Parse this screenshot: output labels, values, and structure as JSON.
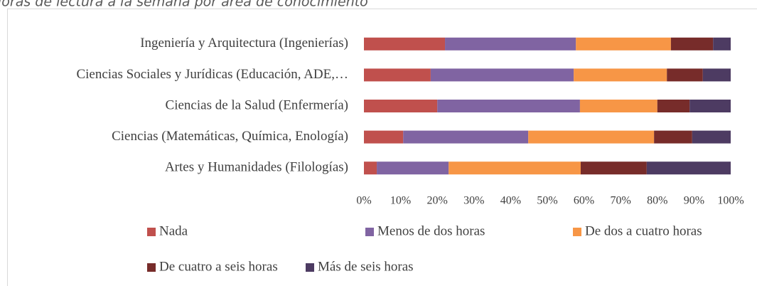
{
  "chart_data": {
    "type": "stacked_bar_horizontal",
    "title": "Horas de lectura a la semana por área de conocimiento",
    "categories": [
      "Ingeniería y Arquitectura (Ingenierías)",
      "Ciencias Sociales y Jurídicas (Educación, ADE,…",
      "Ciencias de la Salud (Enfermería)",
      "Ciencias (Matemáticas, Química, Enología)",
      "Artes y Humanidades (Filologías)"
    ],
    "series": [
      {
        "name": "Nada",
        "color": "#c0504d",
        "values": [
          22.1,
          18.2,
          20,
          10.7,
          3.5
        ]
      },
      {
        "name": "Menos de dos horas",
        "color": "#8064a2",
        "values": [
          35.7,
          39,
          38.9,
          34.1,
          19.6
        ]
      },
      {
        "name": "De dos a cuatro horas",
        "color": "#f79646",
        "values": [
          25.9,
          25.4,
          21.1,
          34.3,
          36
        ]
      },
      {
        "name": "De cuatro a seis horas",
        "color": "#772c2a",
        "values": [
          11.5,
          9.8,
          8.8,
          10.4,
          18
        ]
      },
      {
        "name": "Más de seis horas",
        "color": "#4d3b62",
        "values": [
          4.8,
          7.6,
          11.2,
          10.5,
          22.9
        ]
      }
    ],
    "xlim": [
      0,
      100
    ],
    "xticks": [
      {
        "value": 0,
        "label": "0%"
      },
      {
        "value": 10,
        "label": "10%"
      },
      {
        "value": 20,
        "label": "20%"
      },
      {
        "value": 30,
        "label": "30%"
      },
      {
        "value": 40,
        "label": "40%"
      },
      {
        "value": 50,
        "label": "50%"
      },
      {
        "value": 60,
        "label": "60%"
      },
      {
        "value": 70,
        "label": "70%"
      },
      {
        "value": 80,
        "label": "80%"
      },
      {
        "value": 90,
        "label": "90%"
      },
      {
        "value": 100,
        "label": "100%"
      }
    ],
    "legend": "bottom"
  }
}
